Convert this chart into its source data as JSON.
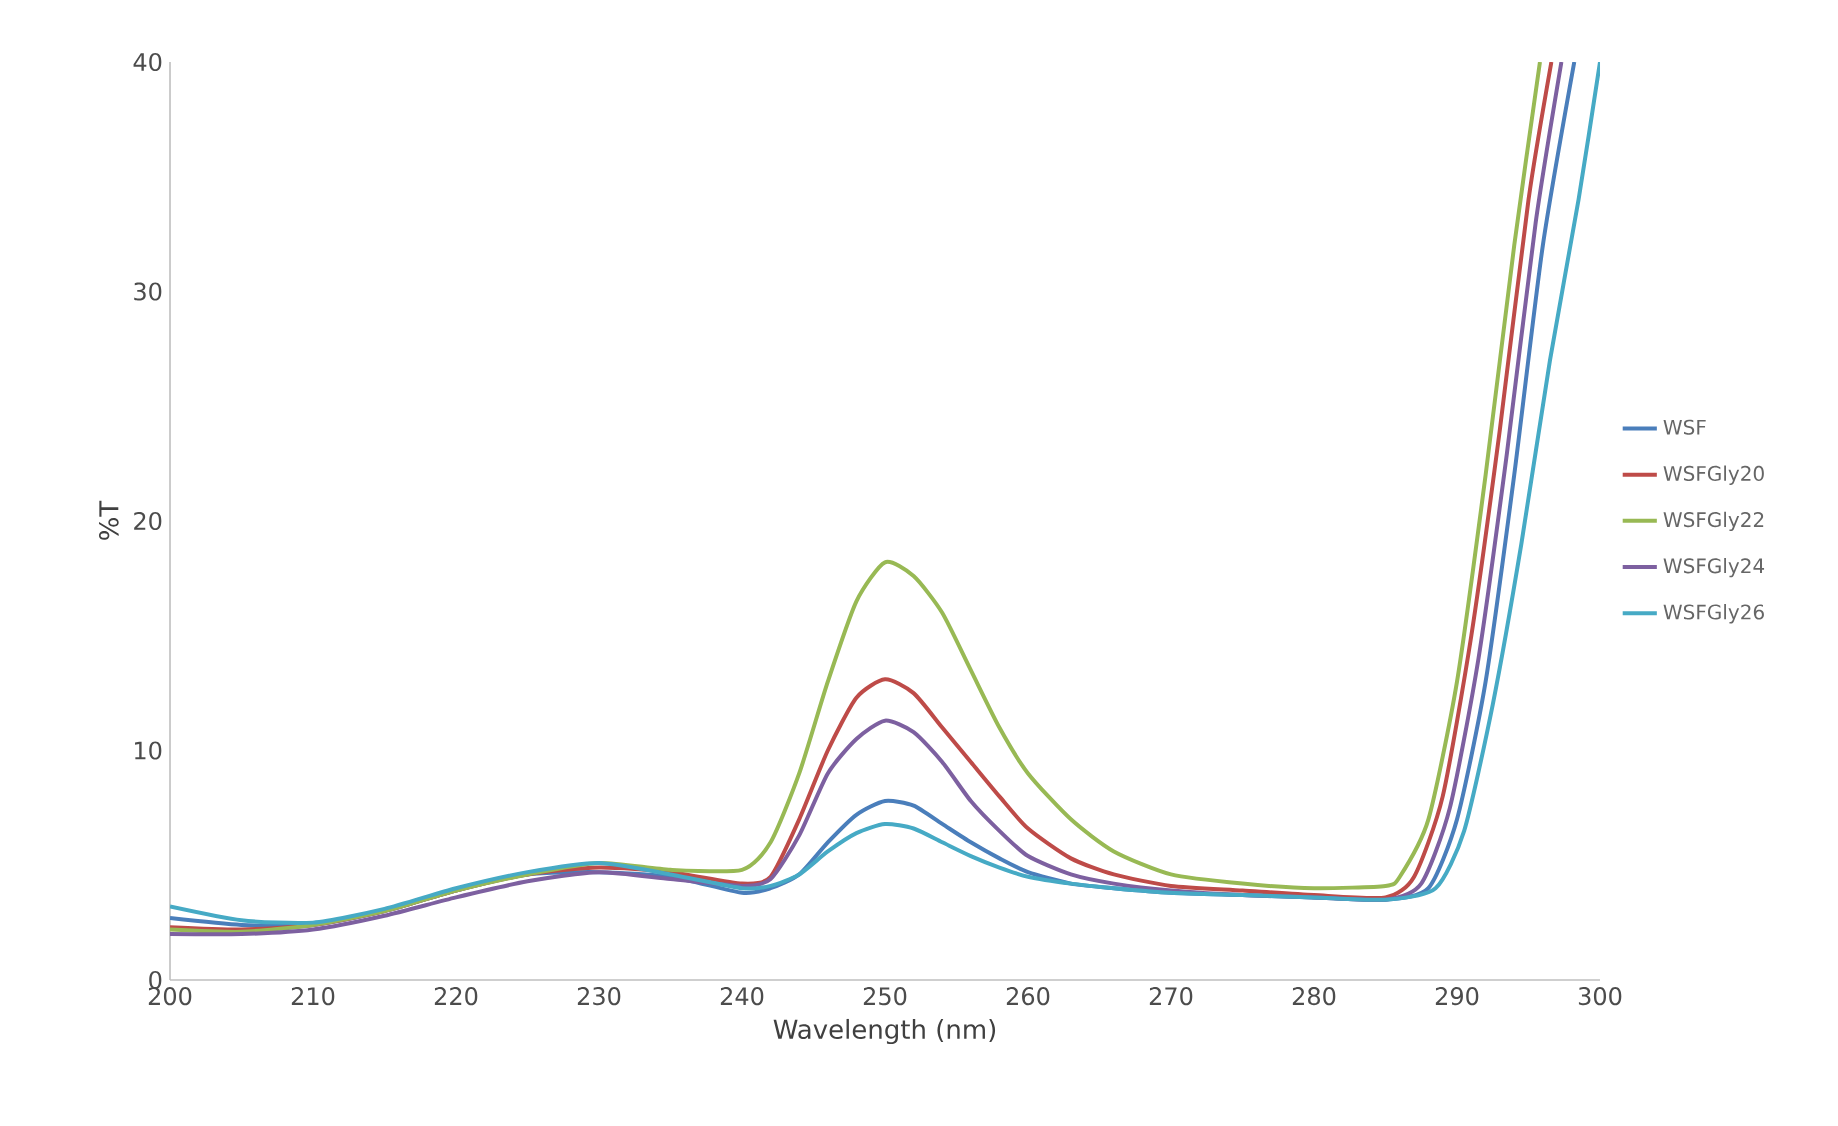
{
  "chart_data": {
    "type": "line",
    "xlabel": "Wavelength (nm)",
    "ylabel": "%T",
    "xlim": [
      200,
      300
    ],
    "ylim": [
      0,
      40
    ],
    "xticks": [
      200,
      210,
      220,
      230,
      240,
      250,
      260,
      270,
      280,
      290,
      300
    ],
    "yticks": [
      0,
      10,
      20,
      30,
      40
    ],
    "grid": false,
    "legend": "right",
    "marker": "none",
    "line_style": "solid",
    "series": [
      {
        "name": "WSF",
        "color": "#4a7ebb",
        "x": [
          200,
          205,
          210,
          215,
          220,
          225,
          230,
          235,
          240,
          242,
          244,
          246,
          248,
          250,
          252,
          254,
          256,
          258,
          260,
          263,
          266,
          270,
          275,
          280,
          285,
          288,
          290,
          292,
          294,
          296,
          298.2
        ],
        "values": [
          2.7,
          2.4,
          2.4,
          3.0,
          3.9,
          4.6,
          4.7,
          4.5,
          3.8,
          4.0,
          4.6,
          6.0,
          7.2,
          7.8,
          7.6,
          6.8,
          6.0,
          5.3,
          4.7,
          4.2,
          4.0,
          3.8,
          3.7,
          3.6,
          3.5,
          4.0,
          7,
          13,
          22,
          32,
          40
        ]
      },
      {
        "name": "WSFGly20",
        "color": "#be4b48",
        "x": [
          200,
          205,
          210,
          215,
          220,
          225,
          230,
          235,
          240,
          242,
          244,
          246,
          248,
          250,
          252,
          254,
          256,
          258,
          260,
          263,
          266,
          270,
          275,
          280,
          285,
          287,
          289,
          291,
          293,
          295,
          296.6
        ],
        "values": [
          2.3,
          2.2,
          2.4,
          3.0,
          3.9,
          4.6,
          4.9,
          4.7,
          4.2,
          4.5,
          7,
          10,
          12.3,
          13.1,
          12.5,
          11,
          9.5,
          8,
          6.6,
          5.3,
          4.6,
          4.1,
          3.9,
          3.7,
          3.6,
          4.5,
          8,
          15,
          24,
          34,
          40
        ]
      },
      {
        "name": "WSFGly22",
        "color": "#98b954",
        "x": [
          200,
          205,
          210,
          215,
          220,
          225,
          230,
          235,
          240,
          242,
          244,
          246,
          248,
          250,
          252,
          254,
          256,
          258,
          260,
          263,
          266,
          270,
          275,
          280,
          285,
          286,
          288,
          290,
          292,
          294,
          295.8
        ],
        "values": [
          2.2,
          2.1,
          2.4,
          3.0,
          3.9,
          4.6,
          5.1,
          4.8,
          4.8,
          6.0,
          9,
          13,
          16.5,
          18.2,
          17.6,
          16,
          13.5,
          11,
          9,
          7,
          5.6,
          4.6,
          4.2,
          4.0,
          4.1,
          4.5,
          7,
          13,
          22,
          32,
          40
        ]
      },
      {
        "name": "WSFGly24",
        "color": "#7d60a0",
        "x": [
          200,
          205,
          210,
          215,
          220,
          225,
          230,
          235,
          240,
          242,
          244,
          246,
          248,
          250,
          252,
          254,
          256,
          258,
          260,
          263,
          266,
          270,
          275,
          280,
          285,
          287.5,
          289.5,
          291.5,
          293.5,
          295.5,
          297.3
        ],
        "values": [
          2.0,
          2.0,
          2.2,
          2.8,
          3.6,
          4.3,
          4.7,
          4.4,
          4.1,
          4.4,
          6.3,
          9,
          10.5,
          11.3,
          10.8,
          9.5,
          7.8,
          6.5,
          5.4,
          4.6,
          4.2,
          3.9,
          3.7,
          3.6,
          3.5,
          4.2,
          7.5,
          14,
          23,
          33,
          40
        ]
      },
      {
        "name": "WSFGly26",
        "color": "#46aac5",
        "x": [
          200,
          205,
          210,
          215,
          220,
          225,
          230,
          235,
          240,
          242,
          244,
          246,
          248,
          250,
          252,
          254,
          256,
          258,
          260,
          263,
          266,
          270,
          275,
          280,
          285,
          288.5,
          290.5,
          292.5,
          294.5,
          296.5,
          298.5,
          300
        ],
        "values": [
          3.2,
          2.6,
          2.5,
          3.1,
          4.0,
          4.7,
          5.1,
          4.6,
          4.0,
          4.1,
          4.6,
          5.6,
          6.4,
          6.8,
          6.6,
          6.0,
          5.4,
          4.9,
          4.5,
          4.2,
          4.0,
          3.8,
          3.7,
          3.6,
          3.5,
          4.0,
          6.5,
          12,
          19,
          27,
          34,
          40
        ]
      }
    ]
  }
}
